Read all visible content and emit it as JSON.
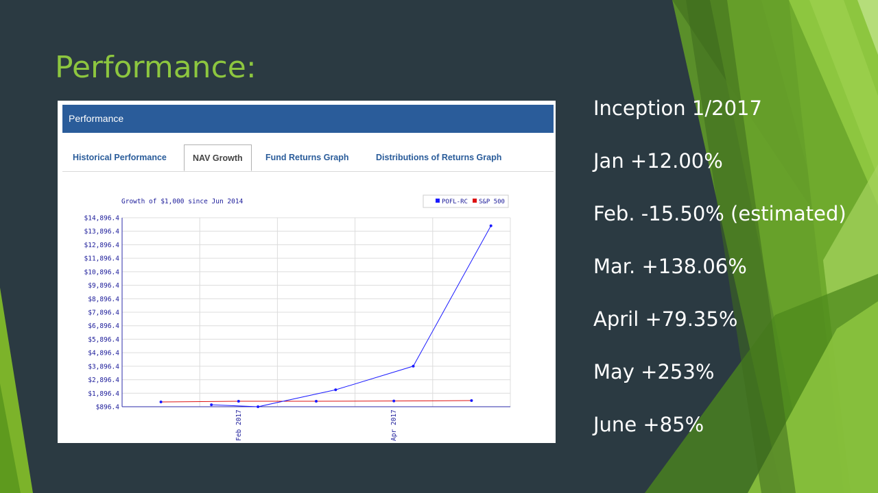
{
  "slide": {
    "title": "Performance:",
    "stats": [
      "Inception 1/2017",
      "Jan +12.00%",
      "Feb. -15.50% (estimated)",
      "Mar. +138.06%",
      "April +79.35%",
      "May +253%",
      "June +85%"
    ]
  },
  "colors": {
    "background": "#2b3a42",
    "title": "#8dc63f",
    "panel_header": "#2a5c9a",
    "series_pofl": "#1a1aff",
    "series_sp500": "#dd1111"
  },
  "panel": {
    "header": "Performance",
    "tabs": [
      {
        "label": "Historical Performance",
        "active": false
      },
      {
        "label": "NAV Growth",
        "active": true
      },
      {
        "label": "Fund Returns Graph",
        "active": false
      },
      {
        "label": "Distributions of Returns Graph",
        "active": false
      }
    ]
  },
  "chart_data": {
    "type": "line",
    "title": "Growth of $1,000 since Jun 2014",
    "legend": [
      "POFL-RC",
      "S&P 500"
    ],
    "legend_position": "top-right",
    "y_ticks": [
      "$14,896.4",
      "$13,896.4",
      "$12,896.4",
      "$11,896.4",
      "$10,896.4",
      "$9,896.4",
      "$8,896.4",
      "$7,896.4",
      "$6,896.4",
      "$5,896.4",
      "$4,896.4",
      "$3,896.4",
      "$2,896.4",
      "$1,896.4",
      "$896.4"
    ],
    "ylim": [
      896.4,
      14896.4
    ],
    "x_tick_labels": [
      "Feb 2017",
      "Apr 2017"
    ],
    "grid": true,
    "series": [
      {
        "name": "POFL-RC",
        "points": [
          [
            0.15,
            1040
          ],
          [
            0.75,
            896.4
          ],
          [
            1.75,
            2150
          ],
          [
            2.75,
            3900
          ],
          [
            3.75,
            14300
          ]
        ]
      },
      {
        "name": "S&P 500",
        "points": [
          [
            -0.5,
            1250
          ],
          [
            0.5,
            1300
          ],
          [
            1.5,
            1300
          ],
          [
            2.5,
            1320
          ],
          [
            3.5,
            1350
          ]
        ]
      }
    ]
  }
}
